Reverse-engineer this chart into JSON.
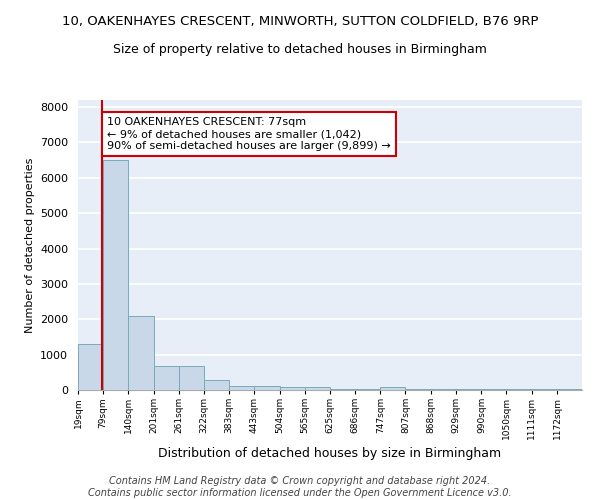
{
  "title1": "10, OAKENHAYES CRESCENT, MINWORTH, SUTTON COLDFIELD, B76 9RP",
  "title2": "Size of property relative to detached houses in Birmingham",
  "xlabel": "Distribution of detached houses by size in Birmingham",
  "ylabel": "Number of detached properties",
  "bin_edges": [
    19,
    79,
    140,
    201,
    261,
    322,
    383,
    443,
    504,
    565,
    625,
    686,
    747,
    807,
    868,
    929,
    990,
    1050,
    1111,
    1172,
    1232
  ],
  "bin_heights": [
    1300,
    6500,
    2080,
    670,
    670,
    290,
    115,
    115,
    80,
    80,
    15,
    15,
    80,
    15,
    15,
    15,
    15,
    15,
    15,
    15
  ],
  "bar_color": "#c8d8e8",
  "bar_edge_color": "#7aaabb",
  "property_size": 77,
  "property_line_color": "#cc0000",
  "annotation_line1": "10 OAKENHAYES CRESCENT: 77sqm",
  "annotation_line2": "← 9% of detached houses are smaller (1,042)",
  "annotation_line3": "90% of semi-detached houses are larger (9,899) →",
  "annotation_box_color": "#ffffff",
  "annotation_box_edge": "#cc0000",
  "ylim": [
    0,
    8200
  ],
  "yticks": [
    0,
    1000,
    2000,
    3000,
    4000,
    5000,
    6000,
    7000,
    8000
  ],
  "bg_color": "#e8eef8",
  "grid_color": "#ffffff",
  "footer": "Contains HM Land Registry data © Crown copyright and database right 2024.\nContains public sector information licensed under the Open Government Licence v3.0.",
  "title1_fontsize": 9.5,
  "title2_fontsize": 9,
  "annotation_fontsize": 8,
  "footer_fontsize": 7,
  "ylabel_fontsize": 8,
  "xlabel_fontsize": 9
}
